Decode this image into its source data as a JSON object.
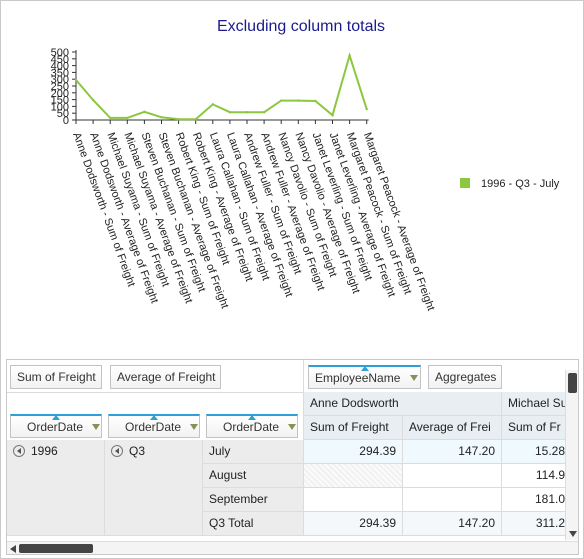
{
  "chart_data": {
    "type": "line",
    "title": "Excluding column totals",
    "xlabel": "",
    "ylabel": "",
    "ylim": [
      0,
      500
    ],
    "yticks": [
      0,
      50,
      100,
      150,
      200,
      250,
      300,
      350,
      400,
      450,
      500
    ],
    "grid": false,
    "legend_position": "right",
    "categories": [
      "Anne Dodsworth - Sum of Freight",
      "Anne Dodsworth - Average of Freight",
      "Michael Suyama - Sum of Freight",
      "Michael Suyama - Average of Freight",
      "Steven Buchanan - Sum of Freight",
      "Steven Buchanan - Average of Freight",
      "Robert King - Sum of Freight",
      "Robert King - Average of Freight",
      "Laura Callahan - Sum of Freight",
      "Laura Callahan - Average of Freight",
      "Andrew Fuller - Sum of Freight",
      "Andrew Fuller - Average of Freight",
      "Nancy Davolio - Sum of Freight",
      "Nancy Davolio - Average of Freight",
      "Janet Leverling - Sum of Freight",
      "Janet Leverling - Average of Freight",
      "Margaret Peacock - Sum of Freight",
      "Margaret Peacock - Average of Freight"
    ],
    "series": [
      {
        "name": "1996 - Q3 - July",
        "color": "#8dc63f",
        "values": [
          294.39,
          147.2,
          15.28,
          15.28,
          60,
          20,
          5,
          5,
          115,
          57,
          57,
          57,
          143,
          143,
          140,
          35,
          475,
          80
        ]
      }
    ]
  },
  "pivot": {
    "data_fields": [
      "Sum of Freight",
      "Average of Freight"
    ],
    "column_fields": [
      "EmployeeName",
      "Aggregates"
    ],
    "row_fields": [
      "OrderDate",
      "OrderDate",
      "OrderDate"
    ],
    "column_groups": [
      "Anne Dodsworth",
      "Michael Su"
    ],
    "measure_headers": [
      "Sum of Freight",
      "Average of Frei",
      "Sum of Fr"
    ],
    "year": "1996",
    "quarter": "Q3",
    "rows": [
      {
        "label": "July",
        "values": [
          "294.39",
          "147.20",
          "15.28"
        ]
      },
      {
        "label": "August",
        "values": [
          "",
          "",
          "114.9"
        ]
      },
      {
        "label": "September",
        "values": [
          "",
          "",
          "181.0"
        ]
      },
      {
        "label": "Q3 Total",
        "values": [
          "294.39",
          "147.20",
          "311.2"
        ]
      }
    ]
  }
}
